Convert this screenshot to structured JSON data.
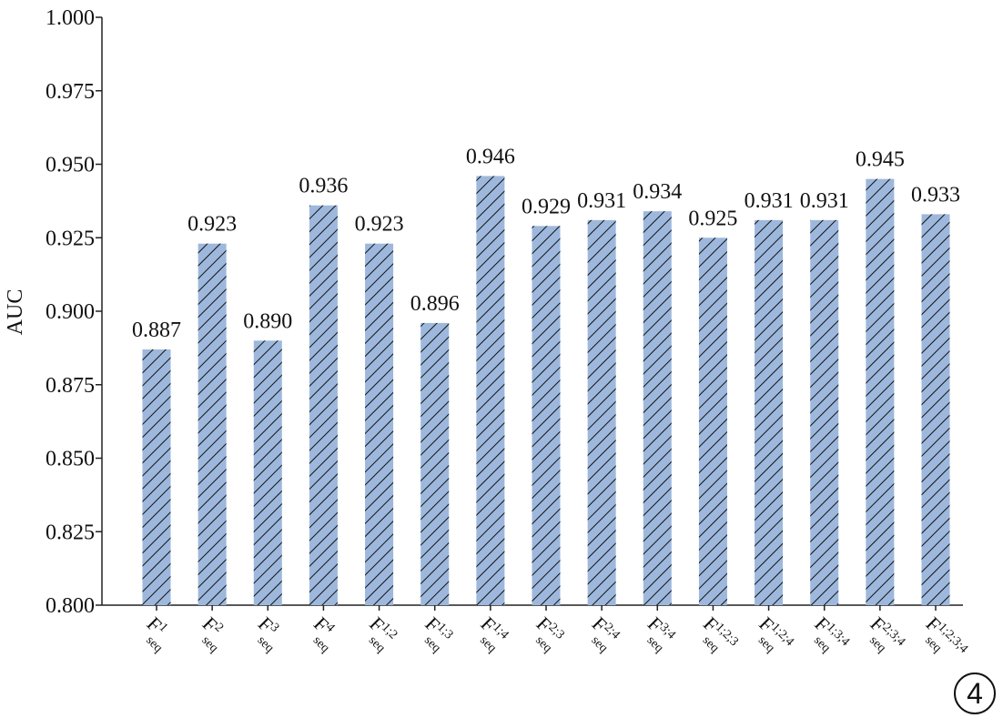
{
  "chart_data": {
    "type": "bar",
    "y_label": "AUC",
    "categories": [
      {
        "base": "F",
        "sup": "1",
        "sub": "seq"
      },
      {
        "base": "F",
        "sup": "2",
        "sub": "seq"
      },
      {
        "base": "F",
        "sup": "3",
        "sub": "seq"
      },
      {
        "base": "F",
        "sup": "4",
        "sub": "seq"
      },
      {
        "base": "F",
        "sup": "1;2",
        "sub": "seq"
      },
      {
        "base": "F",
        "sup": "1;3",
        "sub": "seq"
      },
      {
        "base": "F",
        "sup": "1;4",
        "sub": "seq"
      },
      {
        "base": "F",
        "sup": "2;3",
        "sub": "seq"
      },
      {
        "base": "F",
        "sup": "2;4",
        "sub": "seq"
      },
      {
        "base": "F",
        "sup": "3;4",
        "sub": "seq"
      },
      {
        "base": "F",
        "sup": "1;2;3",
        "sub": "seq"
      },
      {
        "base": "F",
        "sup": "1;2;4",
        "sub": "seq"
      },
      {
        "base": "F",
        "sup": "1;3;4",
        "sub": "seq"
      },
      {
        "base": "F",
        "sup": "2;3;4",
        "sub": "seq"
      },
      {
        "base": "F",
        "sup": "1;2;3;4",
        "sub": "seq"
      }
    ],
    "values": [
      0.887,
      0.923,
      0.89,
      0.936,
      0.923,
      0.896,
      0.946,
      0.929,
      0.931,
      0.934,
      0.925,
      0.931,
      0.931,
      0.945,
      0.933
    ],
    "value_labels": [
      "0.887",
      "0.923",
      "0.890",
      "0.936",
      "0.923",
      "0.896",
      "0.946",
      "0.929",
      "0.931",
      "0.934",
      "0.925",
      "0.931",
      "0.931",
      "0.945",
      "0.933"
    ],
    "color": "#9db8dc",
    "hatch": "///",
    "ylim": [
      0.8,
      1.0
    ],
    "yticks": [
      {
        "value": 0.8,
        "label": "0.800"
      },
      {
        "value": 0.825,
        "label": "0.825"
      },
      {
        "value": 0.85,
        "label": "0.850"
      },
      {
        "value": 0.875,
        "label": "0.875"
      },
      {
        "value": 0.9,
        "label": "0.900"
      },
      {
        "value": 0.925,
        "label": "0.925"
      },
      {
        "value": 0.95,
        "label": "0.950"
      },
      {
        "value": 0.975,
        "label": "0.975"
      },
      {
        "value": 1.0,
        "label": "1.000"
      }
    ],
    "grid": false,
    "annotation": "4"
  }
}
